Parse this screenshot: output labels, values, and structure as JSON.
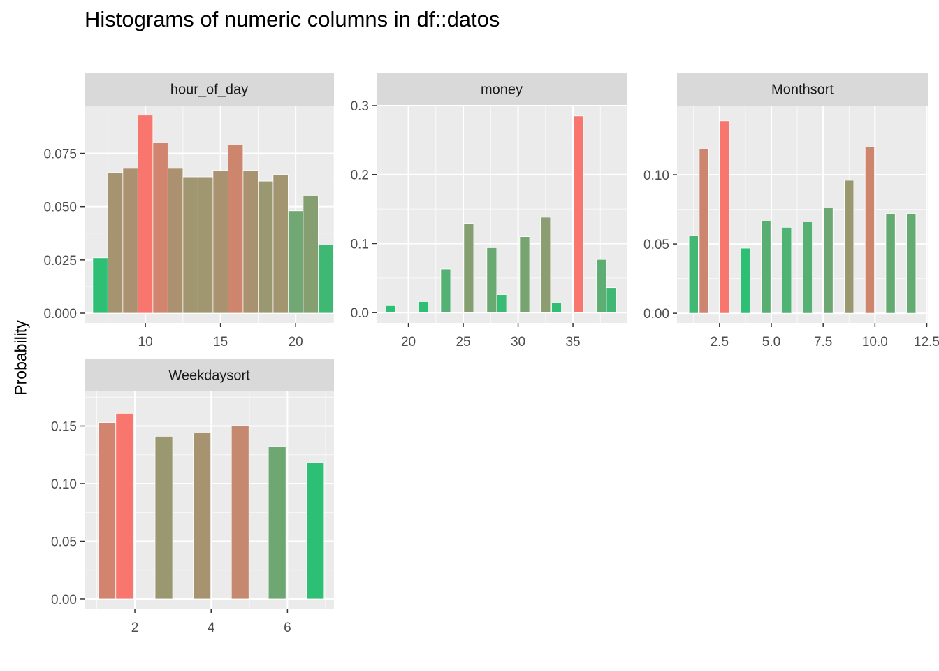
{
  "title": "Histograms of numeric columns in df::datos",
  "ylabel": "Probability",
  "colors": {
    "panel_bg": "#EBEBEB",
    "strip_bg": "#D9D9D9",
    "grid": "#FFFFFF",
    "bar_high": "#F8766D",
    "bar_low": "#2DBF74",
    "tick_text": "#4D4D4D"
  },
  "chart_data": [
    {
      "type": "bar",
      "facet": "hour_of_day",
      "xlim": [
        5.95,
        22.55
      ],
      "ylim": [
        -0.0046,
        0.0975
      ],
      "x_ticks": [
        10,
        15,
        20
      ],
      "x_tick_labels": [
        "10",
        "15",
        "20"
      ],
      "y_ticks": [
        0,
        0.025,
        0.05,
        0.075
      ],
      "y_tick_labels": [
        "0.000",
        "0.025",
        "0.050",
        "0.075"
      ],
      "bin_width": 1,
      "x": [
        7,
        8,
        9,
        10,
        11,
        12,
        13,
        14,
        15,
        16,
        17,
        18,
        19,
        20,
        21,
        22
      ],
      "values": [
        0.026,
        0.066,
        0.068,
        0.093,
        0.08,
        0.068,
        0.064,
        0.064,
        0.067,
        0.079,
        0.067,
        0.062,
        0.065,
        0.048,
        0.055,
        0.032
      ]
    },
    {
      "type": "bar",
      "facet": "money",
      "xlim": [
        17.1,
        39.9
      ],
      "ylim": [
        -0.015,
        0.3
      ],
      "x_ticks": [
        20,
        25,
        30,
        35
      ],
      "x_tick_labels": [
        "20",
        "25",
        "30",
        "35"
      ],
      "y_ticks": [
        0,
        0.1,
        0.2,
        0.3
      ],
      "y_tick_labels": [
        "0.0",
        "0.1",
        "0.2",
        "0.3"
      ],
      "bin_width": 0.9,
      "x": [
        18.4,
        21.4,
        23.4,
        25.5,
        27.6,
        28.5,
        30.6,
        32.5,
        33.5,
        35.5,
        37.6,
        38.5
      ],
      "values": [
        0.01,
        0.016,
        0.063,
        0.129,
        0.094,
        0.026,
        0.11,
        0.138,
        0.014,
        0.285,
        0.077,
        0.036
      ]
    },
    {
      "type": "bar",
      "facet": "Monthsort",
      "xlim": [
        0.45,
        12.55
      ],
      "ylim": [
        -0.007,
        0.15
      ],
      "x_ticks": [
        2.5,
        5,
        7.5,
        10,
        12.5
      ],
      "x_tick_labels": [
        "2.5",
        "5.0",
        "7.5",
        "10.0",
        "12.5"
      ],
      "y_ticks": [
        0,
        0.05,
        0.1
      ],
      "y_tick_labels": [
        "0.00",
        "0.05",
        "0.10"
      ],
      "bin_width": 0.45,
      "x": [
        1.25,
        1.75,
        2.75,
        3.75,
        4.75,
        5.75,
        6.75,
        7.75,
        8.75,
        9.75,
        10.75,
        11.75
      ],
      "values": [
        0.056,
        0.119,
        0.139,
        0.047,
        0.067,
        0.062,
        0.066,
        0.076,
        0.096,
        0.12,
        0.072,
        0.072
      ]
    },
    {
      "type": "bar",
      "facet": "Weekdaysort",
      "xlim": [
        0.68,
        7.22
      ],
      "ylim": [
        -0.0085,
        0.18
      ],
      "x_ticks": [
        2,
        4,
        6
      ],
      "x_tick_labels": [
        "2",
        "4",
        "6"
      ],
      "y_ticks": [
        0,
        0.05,
        0.1,
        0.15
      ],
      "y_tick_labels": [
        "0.00",
        "0.05",
        "0.10",
        "0.15"
      ],
      "bin_width": 0.46,
      "x": [
        1.27,
        1.73,
        2.76,
        3.76,
        4.76,
        5.73,
        6.73
      ],
      "values": [
        0.153,
        0.161,
        0.141,
        0.144,
        0.15,
        0.132,
        0.118
      ]
    }
  ]
}
